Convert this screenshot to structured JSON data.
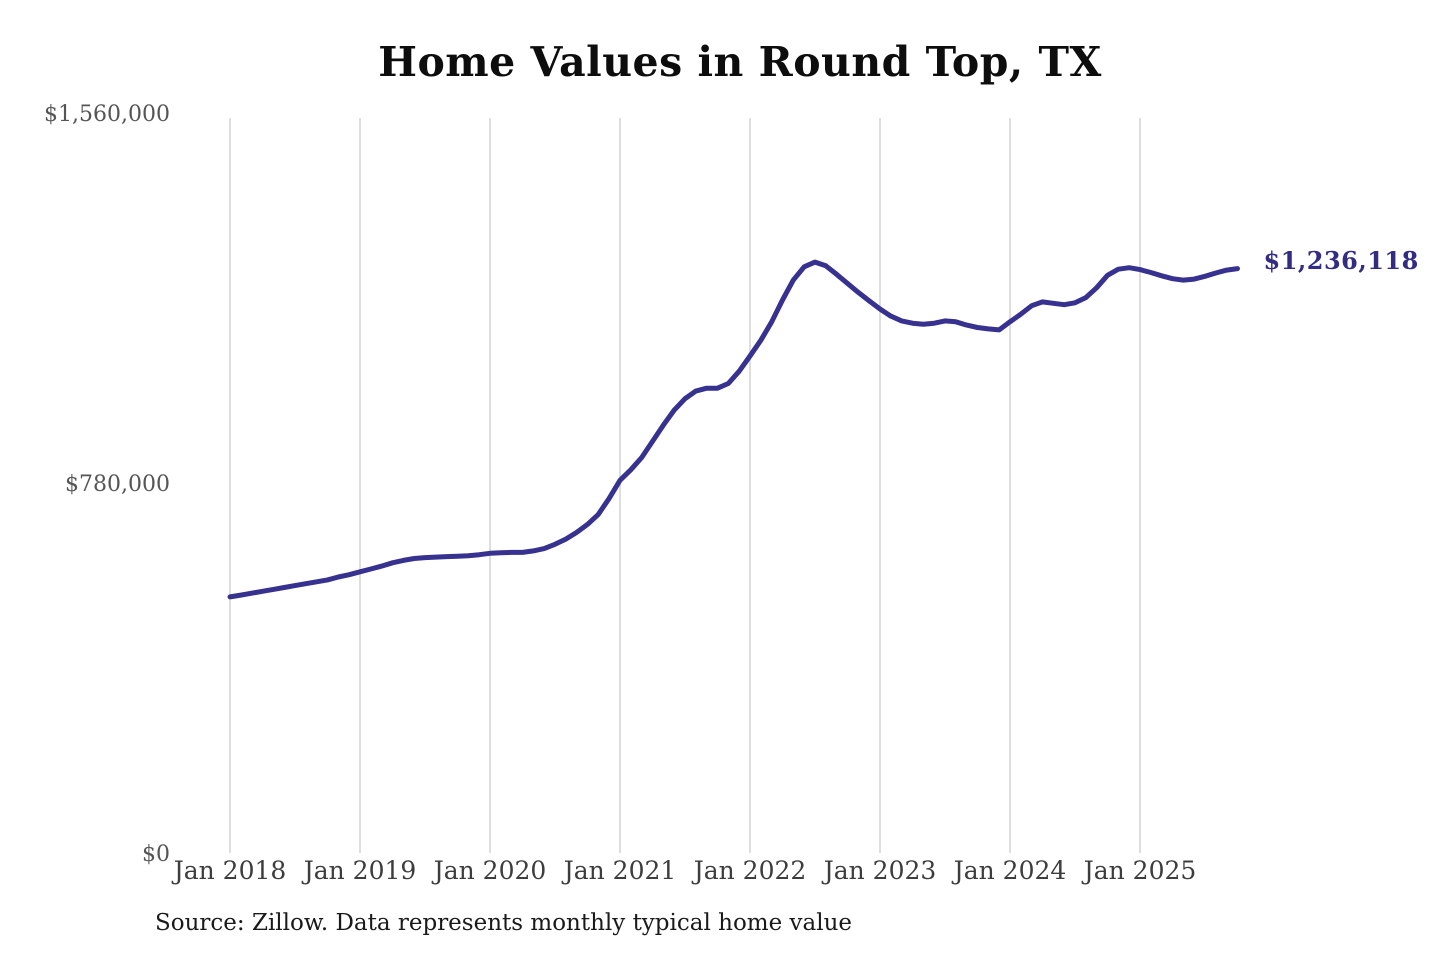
{
  "header": {
    "title": "Home Values in Round Top, TX"
  },
  "source_note": "Source: Zillow. Data represents monthly typical home value",
  "colors": {
    "line": "#37318f",
    "latest_label": "#322c83",
    "grid": "#cccccc",
    "background": "#ffffff"
  },
  "chart_data": {
    "type": "line",
    "title": "Home Values in Round Top, TX",
    "xlabel": "",
    "ylabel": "",
    "ylim": [
      0,
      1560000
    ],
    "grid": "vertical-only",
    "legend": "none",
    "yticks": [
      {
        "label": "$0",
        "value": 0
      },
      {
        "label": "$780,000",
        "value": 780000
      },
      {
        "label": "$1,560,000",
        "value": 1560000
      }
    ],
    "xticks": [
      {
        "label": "Jan 2018",
        "month_index": 0
      },
      {
        "label": "Jan 2019",
        "month_index": 12
      },
      {
        "label": "Jan 2020",
        "month_index": 24
      },
      {
        "label": "Jan 2021",
        "month_index": 36
      },
      {
        "label": "Jan 2022",
        "month_index": 48
      },
      {
        "label": "Jan 2023",
        "month_index": 60
      },
      {
        "label": "Jan 2024",
        "month_index": 72
      },
      {
        "label": "Jan 2025",
        "month_index": 84
      }
    ],
    "series": [
      {
        "name": "Monthly typical home value",
        "start_month": "2018-01",
        "frequency": "monthly",
        "values": [
          544000,
          548000,
          552000,
          556000,
          560000,
          564000,
          568000,
          572000,
          576000,
          580000,
          586000,
          591000,
          597000,
          603000,
          609000,
          616000,
          621000,
          625000,
          627000,
          628000,
          629000,
          630000,
          631000,
          633000,
          636000,
          637000,
          638000,
          638000,
          641000,
          646000,
          655000,
          666000,
          680000,
          697000,
          718000,
          752000,
          790000,
          812000,
          838000,
          872000,
          906000,
          938000,
          962000,
          978000,
          984000,
          984000,
          994000,
          1020000,
          1052000,
          1085000,
          1124000,
          1170000,
          1212000,
          1240000,
          1250000,
          1242000,
          1224000,
          1205000,
          1186000,
          1168000,
          1151000,
          1136000,
          1126000,
          1121000,
          1119000,
          1121000,
          1126000,
          1124000,
          1117000,
          1112000,
          1109000,
          1107000,
          1124000,
          1140000,
          1158000,
          1166000,
          1163000,
          1160000,
          1164000,
          1175000,
          1196000,
          1222000,
          1235000,
          1238000,
          1234000,
          1228000,
          1221000,
          1215000,
          1212000,
          1214000,
          1220000,
          1227000,
          1233000,
          1236118
        ]
      }
    ],
    "latest_value": 1236118,
    "latest_label": "$1,236,118"
  }
}
